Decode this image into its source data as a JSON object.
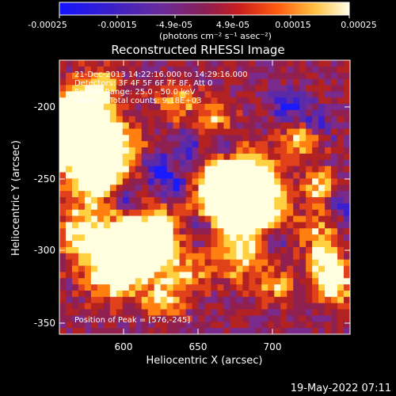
{
  "colorbar": {
    "tick_labels": [
      "-0.00025",
      "-0.00015",
      "-4.9e-05",
      "4.9e-05",
      "0.00015",
      "0.00025"
    ],
    "units_label": "(photons cm⁻² s⁻¹ asec⁻²)"
  },
  "image": {
    "title": "Reconstructed RHESSI Image",
    "annotations": [
      "21-Dec-2013 14:22:16.000 to 14:29:16.000",
      "Detectors: 3F 4F 5F 6F 7F 8F, Att 0",
      "Energy Range: 25.0 - 50.0 keV",
      "Clean     Total counts: 9.18E+03"
    ],
    "peak_label": "Position of Peak = [576,-245]",
    "xlabel": "Heliocentric X (arcsec)",
    "ylabel": "Heliocentric Y (arcsec)",
    "x_ticks": [
      "600",
      "650",
      "700"
    ],
    "y_ticks": [
      "-200",
      "-250",
      "-300",
      "-350"
    ]
  },
  "footer": {
    "timestamp": "19-May-2022 07:11"
  },
  "colors": {
    "background": "#000000",
    "text": "#ffffff",
    "colormap": [
      "#1a1aff",
      "#3a1fd0",
      "#5a2aa8",
      "#7a2a8a",
      "#902050",
      "#b22222",
      "#e0401a",
      "#ff8010",
      "#ffd040",
      "#ffffe0"
    ]
  }
}
